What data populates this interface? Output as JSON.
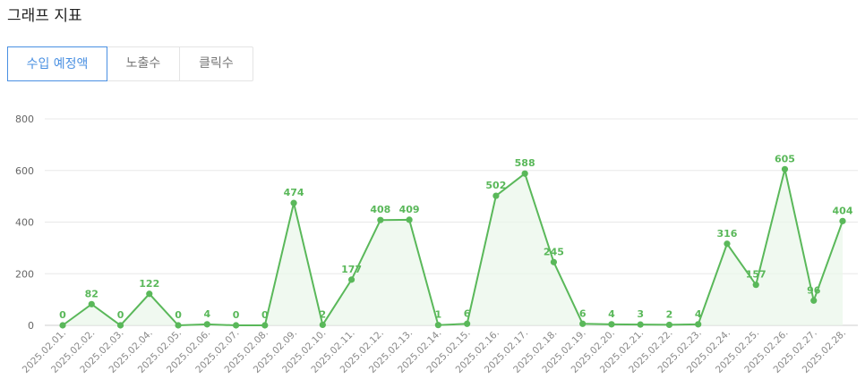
{
  "title": "그래프 지표",
  "tabs": [
    {
      "label": "수입 예정액",
      "active": true
    },
    {
      "label": "노출수",
      "active": false
    },
    {
      "label": "클릭수",
      "active": false
    }
  ],
  "colors": {
    "line": "#5ab85a",
    "fill": "#eaf6ea",
    "grid": "#e8e8e8",
    "active_tab": "#4a90e2"
  },
  "chart_data": {
    "type": "line",
    "categories": [
      "2025.02.01.",
      "2025.02.02.",
      "2025.02.03.",
      "2025.02.04.",
      "2025.02.05.",
      "2025.02.06.",
      "2025.02.07.",
      "2025.02.08.",
      "2025.02.09.",
      "2025.02.10.",
      "2025.02.11.",
      "2025.02.12.",
      "2025.02.13.",
      "2025.02.14.",
      "2025.02.15.",
      "2025.02.16.",
      "2025.02.17.",
      "2025.02.18.",
      "2025.02.19.",
      "2025.02.20.",
      "2025.02.21.",
      "2025.02.22.",
      "2025.02.23.",
      "2025.02.24.",
      "2025.02.25.",
      "2025.02.26.",
      "2025.02.27.",
      "2025.02.28."
    ],
    "values": [
      0,
      82,
      0,
      122,
      0,
      4,
      0,
      0,
      474,
      2,
      177,
      408,
      409,
      1,
      6,
      502,
      588,
      245,
      6,
      4,
      3,
      2,
      4,
      316,
      157,
      605,
      96,
      404
    ],
    "ylim": [
      0,
      800
    ],
    "yticks": [
      0,
      200,
      400,
      600,
      800
    ],
    "grid": true,
    "legend": "none"
  }
}
